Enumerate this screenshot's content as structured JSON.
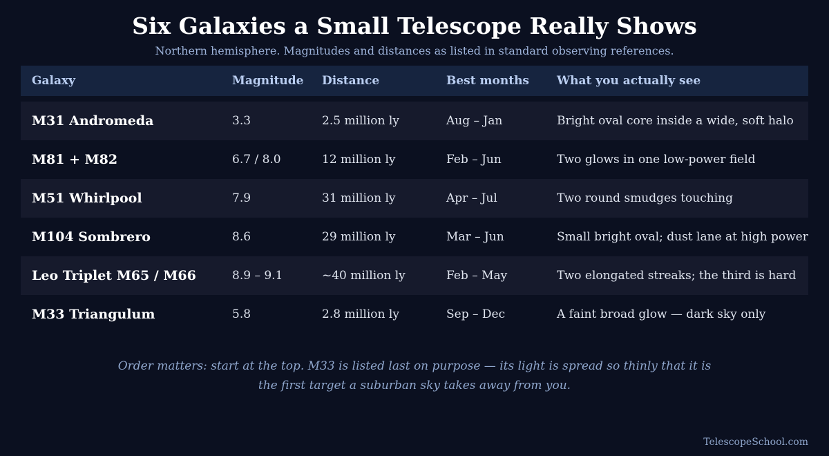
{
  "header": {
    "title": "Six Galaxies a Small Telescope Really Shows",
    "subtitle": "Northern hemisphere. Magnitudes and distances as listed in standard observing references."
  },
  "table": {
    "columns": [
      "Galaxy",
      "Magnitude",
      "Distance",
      "Best months",
      "What you actually see"
    ],
    "rows": [
      {
        "galaxy": "M31 Andromeda",
        "magnitude": "3.3",
        "distance": "2.5 million ly",
        "months": "Aug – Jan",
        "see": "Bright oval core inside a wide, soft halo"
      },
      {
        "galaxy": "M81 + M82",
        "magnitude": "6.7 / 8.0",
        "distance": "12 million ly",
        "months": "Feb – Jun",
        "see": "Two glows in one low-power field"
      },
      {
        "galaxy": "M51 Whirlpool",
        "magnitude": "7.9",
        "distance": "31 million ly",
        "months": "Apr – Jul",
        "see": "Two round smudges touching"
      },
      {
        "galaxy": "M104 Sombrero",
        "magnitude": "8.6",
        "distance": "29 million ly",
        "months": "Mar – Jun",
        "see": "Small bright oval; dust lane at high power"
      },
      {
        "galaxy": "Leo Triplet M65 / M66",
        "magnitude": "8.9 – 9.1",
        "distance": "~40 million ly",
        "months": "Feb – May",
        "see": "Two elongated streaks; the third is hard"
      },
      {
        "galaxy": "M33 Triangulum",
        "magnitude": "5.8",
        "distance": "2.8 million ly",
        "months": "Sep – Dec",
        "see": "A faint broad glow — dark sky only"
      }
    ]
  },
  "note": {
    "line1": "Order matters: start at the top. M33 is listed last on purpose — its light is spread so thinly that it is",
    "line2": "the first target a suburban sky takes away from you."
  },
  "footer": {
    "site": "TelescopeSchool.com"
  },
  "colors": {
    "background": "#0b1020",
    "header_row": "#16243f",
    "band_row": "#161a2c",
    "accent_text": "#9db3da"
  }
}
